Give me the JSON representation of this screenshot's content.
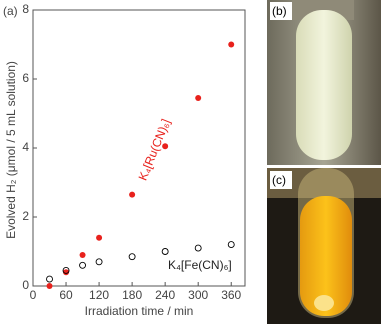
{
  "chart_data": {
    "type": "scatter",
    "panel_labels": [
      "(a)",
      "(b)",
      "(c)"
    ],
    "xlabel": "Irradiation time / min",
    "ylabel": "Evolved H₂ (μmol / 5 mL solution)",
    "x": [
      30,
      60,
      90,
      120,
      180,
      240,
      300,
      360
    ],
    "series": [
      {
        "name": "K₄[Ru(CN)₆]",
        "color": "#e8211c",
        "filled": true,
        "values": [
          0,
          0.4,
          0.9,
          1.4,
          2.65,
          4.05,
          5.45,
          7.0
        ]
      },
      {
        "name": "K₄[Fe(CN)₆]",
        "color": "#000000",
        "filled": false,
        "values": [
          0.2,
          0.45,
          0.6,
          0.7,
          0.85,
          1.0,
          1.1,
          1.2
        ]
      }
    ],
    "xlim": [
      0,
      385
    ],
    "xticks": [
      0,
      60,
      120,
      180,
      240,
      300,
      360
    ],
    "ylim": [
      0,
      8
    ],
    "yticks": [
      0,
      2,
      4,
      6,
      8
    ]
  }
}
